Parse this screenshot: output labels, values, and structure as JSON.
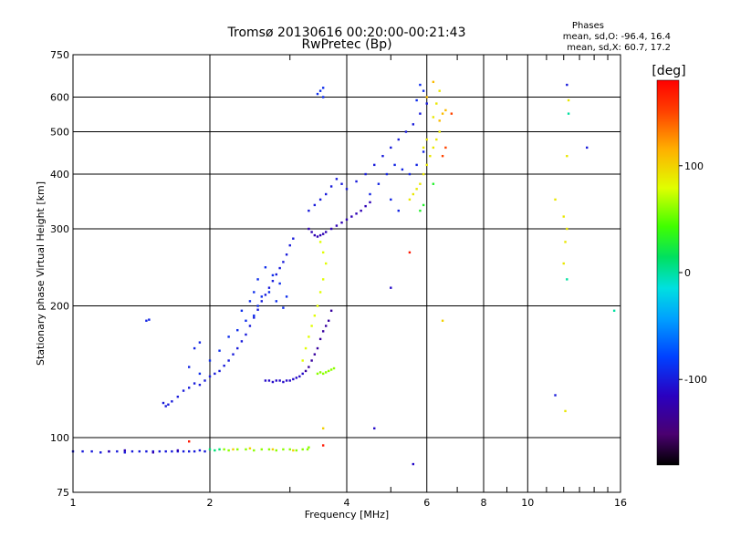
{
  "chart_data": {
    "type": "scatter",
    "title": "Tromsø 20130616 00:20:00-00:21:43",
    "subtitle": "RwPretec (Bp)",
    "xlabel": "Frequency [MHz]",
    "ylabel": "Stationary phase Virtual Height [km]",
    "x_scale": "log",
    "y_scale": "log",
    "xlim": [
      1,
      16
    ],
    "ylim": [
      75,
      750
    ],
    "x_ticks": [
      1,
      2,
      4,
      6,
      8,
      10,
      16
    ],
    "x_tick_labels": [
      "1",
      "2",
      "4",
      "6",
      "8",
      "10",
      "16"
    ],
    "y_ticks": [
      75,
      100,
      200,
      300,
      400,
      500,
      600,
      750
    ],
    "y_tick_labels": [
      "75",
      "100",
      "200",
      "300",
      "400",
      "500",
      "600",
      "750"
    ],
    "grid": true,
    "stats": {
      "heading": "Phases",
      "line1": "mean, sd,O: -96.4, 16.4",
      "line2": "mean, sd,X:  60.7, 17.2"
    },
    "colorbar": {
      "label": "[deg]",
      "min": -180,
      "max": 180,
      "ticks": [
        100,
        0,
        -100
      ],
      "tick_labels": [
        "100",
        "0",
        "-100"
      ]
    },
    "series": [
      {
        "phase": -100,
        "points": [
          [
            1.0,
            93
          ],
          [
            1.05,
            93
          ],
          [
            1.1,
            93
          ],
          [
            1.15,
            92.5
          ],
          [
            1.2,
            93
          ],
          [
            1.25,
            93
          ],
          [
            1.3,
            92.5
          ],
          [
            1.35,
            93
          ],
          [
            1.4,
            93
          ],
          [
            1.45,
            93
          ],
          [
            1.5,
            93
          ],
          [
            1.55,
            93
          ],
          [
            1.6,
            93
          ],
          [
            1.65,
            93
          ],
          [
            1.7,
            93
          ],
          [
            1.75,
            93
          ],
          [
            1.8,
            93
          ],
          [
            1.85,
            93
          ],
          [
            1.9,
            93.5
          ],
          [
            1.95,
            93
          ]
        ]
      },
      {
        "phase": -120,
        "points": [
          [
            1.2,
            93
          ],
          [
            1.3,
            93.5
          ],
          [
            1.5,
            92.5
          ],
          [
            1.7,
            93.5
          ]
        ]
      },
      {
        "phase": 10,
        "points": [
          [
            2.0,
            94
          ],
          [
            2.05,
            93.5
          ],
          [
            2.1,
            94
          ]
        ]
      },
      {
        "phase": 60,
        "points": [
          [
            2.15,
            94
          ],
          [
            2.2,
            93.5
          ],
          [
            2.3,
            94
          ],
          [
            2.4,
            94
          ],
          [
            2.5,
            93.5
          ],
          [
            2.6,
            94
          ],
          [
            2.7,
            94
          ],
          [
            2.8,
            93.5
          ],
          [
            2.9,
            94
          ],
          [
            3.0,
            94
          ],
          [
            3.1,
            93.5
          ],
          [
            3.2,
            94
          ],
          [
            3.28,
            94
          ],
          [
            3.3,
            95
          ]
        ]
      },
      {
        "phase": 100,
        "points": [
          [
            2.25,
            94
          ],
          [
            2.45,
            94.5
          ],
          [
            2.75,
            94
          ],
          [
            3.05,
            93.5
          ]
        ]
      },
      {
        "phase": -100,
        "points": [
          [
            1.58,
            120
          ],
          [
            1.6,
            118
          ],
          [
            1.62,
            119
          ],
          [
            1.65,
            121
          ],
          [
            1.7,
            124
          ],
          [
            1.75,
            128
          ],
          [
            1.8,
            130
          ],
          [
            1.85,
            133
          ],
          [
            1.9,
            132
          ],
          [
            1.95,
            135
          ],
          [
            2.0,
            138
          ],
          [
            2.05,
            140
          ],
          [
            2.1,
            142
          ],
          [
            2.15,
            146
          ],
          [
            2.2,
            150
          ],
          [
            2.25,
            155
          ],
          [
            2.3,
            160
          ],
          [
            2.35,
            166
          ],
          [
            2.4,
            172
          ],
          [
            2.45,
            180
          ],
          [
            2.5,
            188
          ],
          [
            2.55,
            196
          ],
          [
            2.6,
            205
          ],
          [
            2.65,
            212
          ],
          [
            2.7,
            220
          ],
          [
            2.75,
            228
          ],
          [
            2.8,
            236
          ],
          [
            2.85,
            244
          ],
          [
            2.9,
            252
          ],
          [
            2.95,
            262
          ],
          [
            3.0,
            275
          ],
          [
            3.05,
            285
          ]
        ]
      },
      {
        "phase": -90,
        "points": [
          [
            1.9,
            140
          ],
          [
            2.0,
            150
          ],
          [
            2.1,
            158
          ],
          [
            2.2,
            170
          ],
          [
            2.3,
            176
          ],
          [
            2.4,
            185
          ],
          [
            2.5,
            190
          ],
          [
            2.55,
            200
          ],
          [
            2.6,
            210
          ],
          [
            2.7,
            215
          ],
          [
            2.8,
            205
          ],
          [
            2.9,
            198
          ],
          [
            2.95,
            210
          ],
          [
            2.85,
            225
          ],
          [
            2.75,
            235
          ],
          [
            2.65,
            245
          ],
          [
            2.55,
            230
          ],
          [
            2.5,
            215
          ],
          [
            2.45,
            205
          ],
          [
            2.35,
            195
          ]
        ]
      },
      {
        "phase": -95,
        "points": [
          [
            1.45,
            185
          ],
          [
            1.47,
            186
          ],
          [
            1.8,
            145
          ],
          [
            1.85,
            160
          ],
          [
            1.9,
            165
          ]
        ]
      },
      {
        "phase": -110,
        "points": [
          [
            2.65,
            135
          ],
          [
            2.7,
            135
          ],
          [
            2.75,
            134
          ],
          [
            2.8,
            135
          ],
          [
            2.85,
            135
          ],
          [
            2.9,
            134
          ],
          [
            2.95,
            135
          ],
          [
            3.0,
            135
          ],
          [
            3.05,
            136
          ],
          [
            3.1,
            137
          ],
          [
            3.15,
            138
          ],
          [
            3.2,
            140
          ]
        ]
      },
      {
        "phase": -130,
        "points": [
          [
            3.25,
            142
          ],
          [
            3.3,
            145
          ],
          [
            3.35,
            150
          ],
          [
            3.4,
            155
          ],
          [
            3.45,
            160
          ],
          [
            3.5,
            168
          ],
          [
            3.55,
            175
          ],
          [
            3.6,
            180
          ],
          [
            3.65,
            185
          ],
          [
            3.7,
            195
          ]
        ]
      },
      {
        "phase": 80,
        "points": [
          [
            3.2,
            150
          ],
          [
            3.25,
            160
          ],
          [
            3.3,
            170
          ],
          [
            3.35,
            180
          ],
          [
            3.4,
            190
          ],
          [
            3.45,
            200
          ],
          [
            3.5,
            215
          ],
          [
            3.55,
            230
          ],
          [
            3.6,
            250
          ],
          [
            3.55,
            265
          ],
          [
            3.5,
            280
          ]
        ]
      },
      {
        "phase": 60,
        "points": [
          [
            3.45,
            140
          ],
          [
            3.5,
            141
          ],
          [
            3.55,
            140
          ],
          [
            3.6,
            141
          ],
          [
            3.65,
            142
          ],
          [
            3.7,
            143
          ],
          [
            3.75,
            144
          ]
        ]
      },
      {
        "phase": -120,
        "points": [
          [
            3.3,
            300
          ],
          [
            3.35,
            295
          ],
          [
            3.4,
            290
          ],
          [
            3.45,
            288
          ],
          [
            3.5,
            290
          ],
          [
            3.55,
            292
          ],
          [
            3.6,
            295
          ],
          [
            3.7,
            300
          ],
          [
            3.8,
            305
          ],
          [
            3.9,
            310
          ],
          [
            4.0,
            315
          ],
          [
            4.1,
            320
          ],
          [
            4.2,
            325
          ],
          [
            4.3,
            330
          ],
          [
            4.4,
            338
          ],
          [
            4.5,
            345
          ]
        ]
      },
      {
        "phase": -100,
        "points": [
          [
            3.3,
            330
          ],
          [
            3.4,
            340
          ],
          [
            3.5,
            350
          ],
          [
            3.6,
            360
          ],
          [
            3.7,
            375
          ],
          [
            3.8,
            390
          ],
          [
            3.9,
            380
          ],
          [
            4.0,
            370
          ],
          [
            4.2,
            385
          ],
          [
            4.4,
            400
          ],
          [
            4.6,
            420
          ],
          [
            4.8,
            440
          ],
          [
            5.0,
            460
          ],
          [
            5.2,
            480
          ],
          [
            5.4,
            500
          ],
          [
            5.6,
            520
          ],
          [
            5.8,
            550
          ],
          [
            6.0,
            580
          ]
        ]
      },
      {
        "phase": -90,
        "points": [
          [
            3.45,
            610
          ],
          [
            3.5,
            620
          ],
          [
            3.55,
            630
          ],
          [
            3.55,
            600
          ],
          [
            5.8,
            640
          ],
          [
            5.9,
            620
          ],
          [
            5.7,
            590
          ]
        ]
      },
      {
        "phase": -95,
        "points": [
          [
            4.5,
            360
          ],
          [
            4.7,
            380
          ],
          [
            4.9,
            400
          ],
          [
            5.1,
            420
          ],
          [
            5.3,
            410
          ],
          [
            5.5,
            400
          ],
          [
            5.7,
            420
          ],
          [
            5.9,
            450
          ],
          [
            5.0,
            350
          ],
          [
            5.2,
            330
          ]
        ]
      },
      {
        "phase": 90,
        "points": [
          [
            5.5,
            350
          ],
          [
            5.6,
            360
          ],
          [
            5.7,
            370
          ],
          [
            5.8,
            380
          ],
          [
            5.9,
            400
          ],
          [
            6.0,
            420
          ],
          [
            6.1,
            440
          ],
          [
            6.2,
            460
          ],
          [
            6.3,
            480
          ],
          [
            6.4,
            500
          ],
          [
            6.2,
            540
          ],
          [
            6.3,
            580
          ],
          [
            6.4,
            620
          ],
          [
            6.0,
            480
          ],
          [
            5.9,
            460
          ]
        ]
      },
      {
        "phase": 110,
        "points": [
          [
            6.4,
            530
          ],
          [
            6.5,
            550
          ],
          [
            6.6,
            560
          ],
          [
            6.0,
            600
          ],
          [
            6.2,
            650
          ]
        ]
      },
      {
        "phase": 150,
        "points": [
          [
            6.5,
            440
          ],
          [
            6.6,
            460
          ],
          [
            6.8,
            550
          ]
        ]
      },
      {
        "phase": 30,
        "points": [
          [
            5.8,
            330
          ],
          [
            5.9,
            340
          ],
          [
            6.2,
            380
          ]
        ]
      },
      {
        "phase": -110,
        "points": [
          [
            4.6,
            105
          ],
          [
            5.6,
            87
          ],
          [
            5.0,
            220
          ]
        ]
      },
      {
        "phase": 170,
        "points": [
          [
            5.5,
            265
          ],
          [
            1.8,
            98
          ],
          [
            3.55,
            96
          ]
        ]
      },
      {
        "phase": 100,
        "points": [
          [
            3.55,
            105
          ],
          [
            6.5,
            185
          ]
        ]
      },
      {
        "phase": 90,
        "points": [
          [
            12.0,
            250
          ],
          [
            12.1,
            280
          ],
          [
            12.2,
            300
          ],
          [
            12.0,
            320
          ],
          [
            11.5,
            350
          ],
          [
            12.2,
            440
          ],
          [
            12.3,
            590
          ],
          [
            12.1,
            115
          ]
        ]
      },
      {
        "phase": -100,
        "points": [
          [
            11.5,
            125
          ],
          [
            12.2,
            640
          ],
          [
            13.5,
            460
          ]
        ]
      },
      {
        "phase": 0,
        "points": [
          [
            12.3,
            550
          ],
          [
            15.5,
            195
          ],
          [
            12.2,
            230
          ]
        ]
      }
    ]
  }
}
